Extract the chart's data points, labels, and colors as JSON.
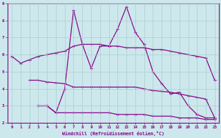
{
  "xlabel": "Windchill (Refroidissement éolien,°C)",
  "xlim": [
    -0.5,
    23.5
  ],
  "ylim": [
    2,
    9
  ],
  "yticks": [
    2,
    3,
    4,
    5,
    6,
    7,
    8,
    9
  ],
  "xticks": [
    0,
    1,
    2,
    3,
    4,
    5,
    6,
    7,
    8,
    9,
    10,
    11,
    12,
    13,
    14,
    15,
    16,
    17,
    18,
    19,
    20,
    21,
    22,
    23
  ],
  "background_color": "#cce8ec",
  "line_color": "#880088",
  "grid_color": "#aacccc",
  "series1_x": [
    0,
    1,
    2,
    3,
    4,
    5,
    6,
    7,
    8,
    9,
    10,
    11,
    12,
    13,
    14,
    15,
    16,
    17,
    18,
    19,
    20,
    21,
    22,
    23
  ],
  "series1_y": [
    5.9,
    5.5,
    5.7,
    5.9,
    6.0,
    6.1,
    6.2,
    6.5,
    6.6,
    6.6,
    6.6,
    6.5,
    6.5,
    6.4,
    6.4,
    6.4,
    6.3,
    6.3,
    6.2,
    6.1,
    6.0,
    5.9,
    5.8,
    4.5
  ],
  "series2_x": [
    3,
    4,
    5,
    6,
    7,
    8,
    9,
    10,
    11,
    12,
    13,
    14,
    15,
    16,
    17,
    18,
    19,
    20,
    21,
    22,
    23
  ],
  "series2_y": [
    3.0,
    3.0,
    2.6,
    4.0,
    8.6,
    6.6,
    5.2,
    6.5,
    6.5,
    7.5,
    8.8,
    7.3,
    6.6,
    5.0,
    4.3,
    3.7,
    3.8,
    3.0,
    2.5,
    2.3,
    2.3
  ],
  "series3_x": [
    2,
    3,
    4,
    5,
    6,
    7,
    8,
    9,
    10,
    11,
    12,
    13,
    14,
    15,
    16,
    17,
    18,
    19,
    20,
    21,
    22,
    23
  ],
  "series3_y": [
    4.5,
    4.5,
    4.4,
    4.35,
    4.3,
    4.1,
    4.1,
    4.1,
    4.1,
    4.1,
    4.1,
    4.1,
    4.1,
    4.0,
    3.9,
    3.85,
    3.8,
    3.7,
    3.6,
    3.5,
    3.4,
    2.3
  ],
  "series4_x": [
    3,
    4,
    5,
    6,
    7,
    8,
    9,
    10,
    11,
    12,
    13,
    14,
    15,
    16,
    17,
    18,
    19,
    20,
    21,
    22,
    23
  ],
  "series4_y": [
    3.0,
    3.0,
    2.6,
    2.6,
    2.6,
    2.6,
    2.6,
    2.6,
    2.6,
    2.5,
    2.5,
    2.5,
    2.5,
    2.4,
    2.4,
    2.4,
    2.3,
    2.3,
    2.3,
    2.2,
    2.2
  ]
}
